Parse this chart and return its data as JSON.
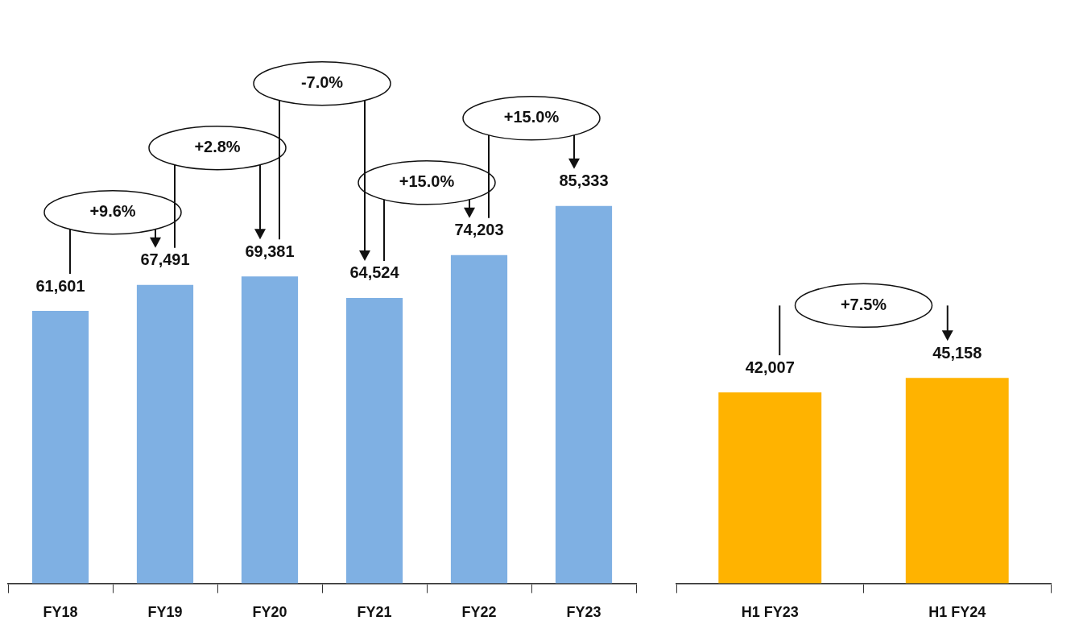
{
  "chart_data": [
    {
      "type": "bar",
      "categories": [
        "FY18",
        "FY19",
        "FY20",
        "FY21",
        "FY22",
        "FY23"
      ],
      "values": [
        61601,
        67491,
        69381,
        64524,
        74203,
        85333
      ],
      "value_labels": [
        "61,601",
        "67,491",
        "69,381",
        "64,524",
        "74,203",
        "85,333"
      ],
      "color": "#7fb0e3",
      "grid": false,
      "legend": false,
      "tick_labels": "x",
      "annotations": [
        "+9.6%",
        "+2.8%",
        "-7.0%",
        "+15.0%",
        "+15.0%"
      ]
    },
    {
      "type": "bar",
      "categories": [
        "H1 FY23",
        "H1 FY24"
      ],
      "values": [
        42007,
        45158
      ],
      "value_labels": [
        "42,007",
        "45,158"
      ],
      "color": "#ffb300",
      "grid": false,
      "legend": false,
      "tick_labels": "x",
      "annotations": [
        "+7.5%"
      ]
    }
  ]
}
